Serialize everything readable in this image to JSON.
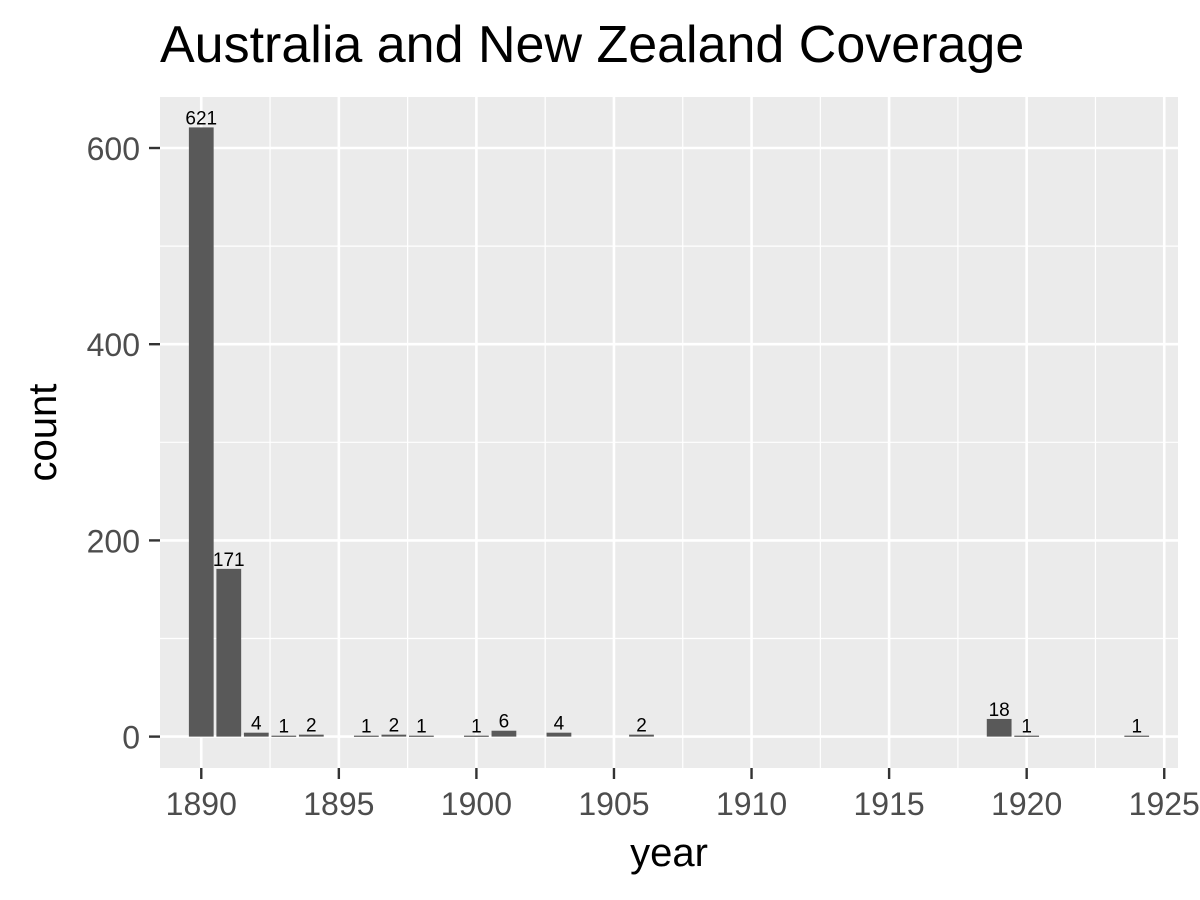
{
  "chart_data": {
    "type": "bar",
    "title": "Australia and New Zealand Coverage",
    "xlabel": "year",
    "ylabel": "count",
    "xlim": [
      1888.5,
      1925.5
    ],
    "ylim": [
      -32,
      652
    ],
    "x_ticks": [
      1890,
      1895,
      1900,
      1905,
      1910,
      1915,
      1920,
      1925
    ],
    "y_ticks": [
      0,
      200,
      400,
      600
    ],
    "bar_width": 0.9,
    "grid": true,
    "legend": "none",
    "series": [
      {
        "x": [
          1890,
          1891,
          1892,
          1893,
          1894,
          1896,
          1897,
          1898,
          1900,
          1901,
          1903,
          1906,
          1919,
          1920,
          1924
        ],
        "values": [
          621,
          171,
          4,
          1,
          2,
          1,
          2,
          1,
          1,
          6,
          4,
          2,
          18,
          1,
          1
        ]
      }
    ],
    "colors": {
      "bar": "#595959",
      "panel": "#EBEBEB",
      "grid": "#FFFFFF",
      "text": "#000000",
      "tick_text": "#4D4D4D",
      "tick_mark": "#333333"
    }
  }
}
